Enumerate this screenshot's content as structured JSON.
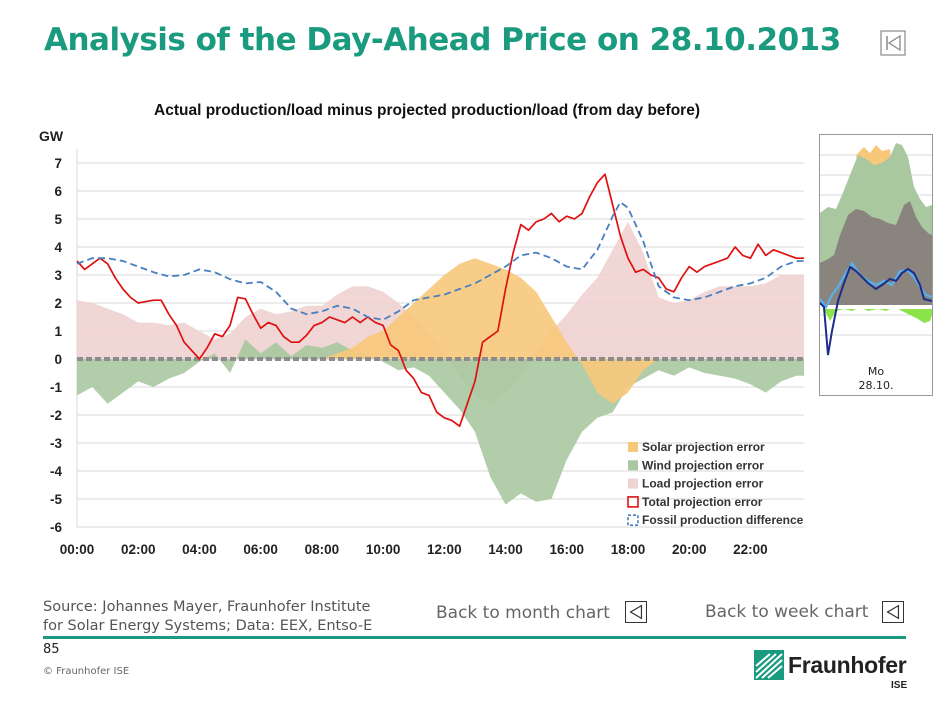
{
  "slide": {
    "title": "Analysis of the Day-Ahead Price on 28.10.2013",
    "page_number": "85",
    "copyright": "© Fraunhofer ISE",
    "source_line1": "Source: Johannes Mayer, Fraunhofer Institute",
    "source_line2": "for Solar Energy Systems; Data: EEX, Entso-E",
    "back_month": "Back to month chart",
    "back_week": "Back to week chart",
    "logo_name": "Fraunhofer",
    "logo_sub": "ISE",
    "accent_color": "#1a9a7f"
  },
  "thumbnail": {
    "day": "Mo",
    "date": "28.10."
  },
  "chart_data": {
    "type": "area",
    "title": "Actual production/load minus projected production/load (from day before)",
    "ylabel": "GW",
    "ylim": [
      -6,
      7.5
    ],
    "yticks": [
      -6,
      -5,
      -4,
      -3,
      -2,
      -1,
      0,
      1,
      2,
      3,
      4,
      5,
      6,
      7
    ],
    "xlim": [
      0,
      23.75
    ],
    "xticks": [
      {
        "x": 0,
        "label": "00:00"
      },
      {
        "x": 2,
        "label": "02:00"
      },
      {
        "x": 4,
        "label": "04:00"
      },
      {
        "x": 6,
        "label": "06:00"
      },
      {
        "x": 8,
        "label": "08:00"
      },
      {
        "x": 10,
        "label": "10:00"
      },
      {
        "x": 12,
        "label": "12:00"
      },
      {
        "x": 14,
        "label": "14:00"
      },
      {
        "x": 16,
        "label": "16:00"
      },
      {
        "x": 18,
        "label": "18:00"
      },
      {
        "x": 20,
        "label": "20:00"
      },
      {
        "x": 22,
        "label": "22:00"
      }
    ],
    "grid": true,
    "legend_position": "bottom-right",
    "series": [
      {
        "name": "Load projection error",
        "kind": "area",
        "color": "#f0d2d2",
        "points": [
          [
            0,
            2.1
          ],
          [
            0.5,
            2.0
          ],
          [
            1,
            1.8
          ],
          [
            1.5,
            1.6
          ],
          [
            2,
            1.3
          ],
          [
            2.5,
            1.3
          ],
          [
            3,
            1.2
          ],
          [
            3.5,
            1.3
          ],
          [
            4,
            1.0
          ],
          [
            4.5,
            0.7
          ],
          [
            5,
            0.9
          ],
          [
            5.5,
            1.5
          ],
          [
            6,
            1.8
          ],
          [
            6.5,
            1.6
          ],
          [
            7,
            1.7
          ],
          [
            7.5,
            1.9
          ],
          [
            8,
            1.9
          ],
          [
            8.5,
            2.3
          ],
          [
            9,
            2.6
          ],
          [
            9.5,
            2.6
          ],
          [
            10,
            2.4
          ],
          [
            10.5,
            2.0
          ],
          [
            11,
            1.5
          ],
          [
            11.5,
            0.9
          ],
          [
            12,
            0.2
          ],
          [
            12.5,
            -0.6
          ],
          [
            13,
            -1.3
          ],
          [
            13.5,
            -1.6
          ],
          [
            14,
            -1.2
          ],
          [
            14.5,
            -0.6
          ],
          [
            15,
            0.3
          ],
          [
            15.5,
            1.0
          ],
          [
            16,
            1.6
          ],
          [
            16.5,
            2.3
          ],
          [
            17,
            2.9
          ],
          [
            17.5,
            3.9
          ],
          [
            18,
            4.9
          ],
          [
            18.5,
            3.8
          ],
          [
            19,
            2.2
          ],
          [
            19.5,
            2.0
          ],
          [
            20,
            2.1
          ],
          [
            20.5,
            2.4
          ],
          [
            21,
            2.6
          ],
          [
            21.5,
            2.6
          ],
          [
            22,
            2.6
          ],
          [
            22.5,
            2.7
          ],
          [
            23,
            3.0
          ],
          [
            23.5,
            3.0
          ],
          [
            23.75,
            3.0
          ]
        ]
      },
      {
        "name": "Wind projection error",
        "kind": "area",
        "color": "#a9c8a0",
        "points": [
          [
            0,
            -1.3
          ],
          [
            0.5,
            -1.0
          ],
          [
            1,
            -1.6
          ],
          [
            1.5,
            -1.2
          ],
          [
            2,
            -0.8
          ],
          [
            2.5,
            -1.0
          ],
          [
            3,
            -0.7
          ],
          [
            3.5,
            -0.5
          ],
          [
            4,
            -0.1
          ],
          [
            4.5,
            0.2
          ],
          [
            5,
            -0.5
          ],
          [
            5.5,
            0.7
          ],
          [
            6,
            0.2
          ],
          [
            6.5,
            0.6
          ],
          [
            7,
            0.1
          ],
          [
            7.5,
            0.5
          ],
          [
            8,
            0.4
          ],
          [
            8.5,
            0.6
          ],
          [
            9,
            0.3
          ],
          [
            9.5,
            0.1
          ],
          [
            10,
            -0.1
          ],
          [
            10.5,
            -0.4
          ],
          [
            11,
            -0.3
          ],
          [
            11.5,
            -0.6
          ],
          [
            12,
            -1.2
          ],
          [
            12.5,
            -1.8
          ],
          [
            13,
            -2.6
          ],
          [
            13.5,
            -4.2
          ],
          [
            14,
            -5.2
          ],
          [
            14.5,
            -4.8
          ],
          [
            15,
            -5.1
          ],
          [
            15.5,
            -5.0
          ],
          [
            16,
            -3.6
          ],
          [
            16.5,
            -2.6
          ],
          [
            17,
            -2.1
          ],
          [
            17.5,
            -1.9
          ],
          [
            18,
            -1.0
          ],
          [
            18.5,
            -0.7
          ],
          [
            19,
            -0.4
          ],
          [
            19.5,
            -0.6
          ],
          [
            20,
            -0.3
          ],
          [
            20.5,
            -0.5
          ],
          [
            21,
            -0.6
          ],
          [
            21.5,
            -0.7
          ],
          [
            22,
            -0.9
          ],
          [
            22.5,
            -1.2
          ],
          [
            23,
            -0.8
          ],
          [
            23.5,
            -0.6
          ],
          [
            23.75,
            -0.6
          ]
        ]
      },
      {
        "name": "Solar projection error",
        "kind": "area",
        "color": "#f7c87a",
        "points": [
          [
            8,
            0
          ],
          [
            8.5,
            0.2
          ],
          [
            9,
            0.4
          ],
          [
            9.5,
            0.8
          ],
          [
            10,
            1.0
          ],
          [
            10.5,
            1.5
          ],
          [
            11,
            2.0
          ],
          [
            11.5,
            2.5
          ],
          [
            12,
            3.0
          ],
          [
            12.5,
            3.4
          ],
          [
            13,
            3.6
          ],
          [
            13.5,
            3.4
          ],
          [
            14,
            3.2
          ],
          [
            14.5,
            2.9
          ],
          [
            15,
            2.4
          ],
          [
            15.5,
            1.5
          ],
          [
            16,
            0.6
          ],
          [
            16.5,
            -0.2
          ],
          [
            17,
            -1.2
          ],
          [
            17.5,
            -1.6
          ],
          [
            18,
            -1.2
          ],
          [
            18.5,
            -0.4
          ],
          [
            19,
            0
          ]
        ]
      },
      {
        "name": "Total projection error",
        "kind": "line",
        "color": "#e01010",
        "points": [
          [
            0,
            3.5
          ],
          [
            0.25,
            3.2
          ],
          [
            0.5,
            3.4
          ],
          [
            0.75,
            3.6
          ],
          [
            1,
            3.4
          ],
          [
            1.25,
            2.9
          ],
          [
            1.5,
            2.5
          ],
          [
            1.75,
            2.2
          ],
          [
            2,
            2.0
          ],
          [
            2.25,
            2.05
          ],
          [
            2.5,
            2.1
          ],
          [
            2.75,
            2.1
          ],
          [
            3,
            1.6
          ],
          [
            3.25,
            1.2
          ],
          [
            3.5,
            0.6
          ],
          [
            3.75,
            0.3
          ],
          [
            4,
            0.0
          ],
          [
            4.25,
            0.4
          ],
          [
            4.5,
            0.9
          ],
          [
            4.75,
            0.8
          ],
          [
            5,
            1.2
          ],
          [
            5.25,
            2.2
          ],
          [
            5.5,
            2.15
          ],
          [
            5.75,
            1.6
          ],
          [
            6,
            1.1
          ],
          [
            6.25,
            1.3
          ],
          [
            6.5,
            1.2
          ],
          [
            6.75,
            0.8
          ],
          [
            7,
            0.6
          ],
          [
            7.25,
            0.6
          ],
          [
            7.5,
            0.85
          ],
          [
            7.75,
            1.2
          ],
          [
            8,
            1.3
          ],
          [
            8.25,
            1.5
          ],
          [
            8.5,
            1.4
          ],
          [
            8.75,
            1.3
          ],
          [
            9,
            1.5
          ],
          [
            9.25,
            1.3
          ],
          [
            9.5,
            1.5
          ],
          [
            9.75,
            1.3
          ],
          [
            10,
            1.2
          ],
          [
            10.25,
            0.5
          ],
          [
            10.5,
            0.3
          ],
          [
            10.75,
            -0.4
          ],
          [
            11,
            -0.7
          ],
          [
            11.25,
            -1.2
          ],
          [
            11.5,
            -1.3
          ],
          [
            11.75,
            -1.9
          ],
          [
            12,
            -2.1
          ],
          [
            12.25,
            -2.2
          ],
          [
            12.5,
            -2.4
          ],
          [
            12.75,
            -1.6
          ],
          [
            13,
            -0.8
          ],
          [
            13.25,
            0.6
          ],
          [
            13.5,
            0.8
          ],
          [
            13.75,
            1.0
          ],
          [
            14,
            2.5
          ],
          [
            14.25,
            3.8
          ],
          [
            14.5,
            4.8
          ],
          [
            14.75,
            4.6
          ],
          [
            15,
            4.9
          ],
          [
            15.25,
            5.0
          ],
          [
            15.5,
            5.2
          ],
          [
            15.75,
            4.9
          ],
          [
            16,
            5.1
          ],
          [
            16.25,
            5.0
          ],
          [
            16.5,
            5.2
          ],
          [
            16.75,
            5.8
          ],
          [
            17,
            6.3
          ],
          [
            17.25,
            6.6
          ],
          [
            17.5,
            5.5
          ],
          [
            17.75,
            4.4
          ],
          [
            18,
            3.6
          ],
          [
            18.25,
            3.1
          ],
          [
            18.5,
            3.2
          ],
          [
            18.75,
            3.0
          ],
          [
            19,
            2.9
          ],
          [
            19.25,
            2.5
          ],
          [
            19.5,
            2.4
          ],
          [
            19.75,
            2.9
          ],
          [
            20,
            3.3
          ],
          [
            20.25,
            3.1
          ],
          [
            20.5,
            3.3
          ],
          [
            20.75,
            3.4
          ],
          [
            21,
            3.5
          ],
          [
            21.25,
            3.6
          ],
          [
            21.5,
            4.0
          ],
          [
            21.75,
            3.7
          ],
          [
            22,
            3.6
          ],
          [
            22.25,
            4.1
          ],
          [
            22.5,
            3.7
          ],
          [
            22.75,
            3.9
          ],
          [
            23,
            3.8
          ],
          [
            23.25,
            3.7
          ],
          [
            23.5,
            3.6
          ],
          [
            23.75,
            3.6
          ]
        ]
      },
      {
        "name": "Fossil production difference",
        "kind": "dashed-line",
        "color": "#4a7fbf",
        "points": [
          [
            0,
            3.4
          ],
          [
            0.5,
            3.6
          ],
          [
            1,
            3.6
          ],
          [
            1.5,
            3.5
          ],
          [
            2,
            3.3
          ],
          [
            2.5,
            3.1
          ],
          [
            3,
            2.95
          ],
          [
            3.5,
            3.0
          ],
          [
            4,
            3.2
          ],
          [
            4.5,
            3.1
          ],
          [
            5,
            2.85
          ],
          [
            5.5,
            2.7
          ],
          [
            6,
            2.75
          ],
          [
            6.5,
            2.4
          ],
          [
            7,
            1.8
          ],
          [
            7.5,
            1.6
          ],
          [
            8,
            1.7
          ],
          [
            8.5,
            1.9
          ],
          [
            9,
            1.8
          ],
          [
            9.5,
            1.5
          ],
          [
            10,
            1.4
          ],
          [
            10.5,
            1.7
          ],
          [
            11,
            2.1
          ],
          [
            11.5,
            2.2
          ],
          [
            12,
            2.3
          ],
          [
            12.5,
            2.5
          ],
          [
            13,
            2.7
          ],
          [
            13.5,
            3.0
          ],
          [
            14,
            3.3
          ],
          [
            14.5,
            3.7
          ],
          [
            15,
            3.8
          ],
          [
            15.5,
            3.6
          ],
          [
            16,
            3.3
          ],
          [
            16.5,
            3.2
          ],
          [
            17,
            3.9
          ],
          [
            17.5,
            5.1
          ],
          [
            17.75,
            5.6
          ],
          [
            18,
            5.4
          ],
          [
            18.5,
            4.2
          ],
          [
            19,
            2.6
          ],
          [
            19.5,
            2.2
          ],
          [
            20,
            2.1
          ],
          [
            20.5,
            2.2
          ],
          [
            21,
            2.4
          ],
          [
            21.5,
            2.6
          ],
          [
            22,
            2.7
          ],
          [
            22.5,
            2.9
          ],
          [
            23,
            3.3
          ],
          [
            23.5,
            3.5
          ],
          [
            23.75,
            3.5
          ]
        ]
      }
    ],
    "legend": [
      {
        "label": "Solar projection error",
        "color": "#f7c87a",
        "style": "fill"
      },
      {
        "label": "Wind projection error",
        "color": "#a9c8a0",
        "style": "fill"
      },
      {
        "label": "Load projection error",
        "color": "#f0d2d2",
        "style": "fill"
      },
      {
        "label": "Total projection error",
        "color": "#e01010",
        "style": "outline"
      },
      {
        "label": "Fossil production difference",
        "color": "#4a7fbf",
        "style": "dashed"
      }
    ]
  }
}
